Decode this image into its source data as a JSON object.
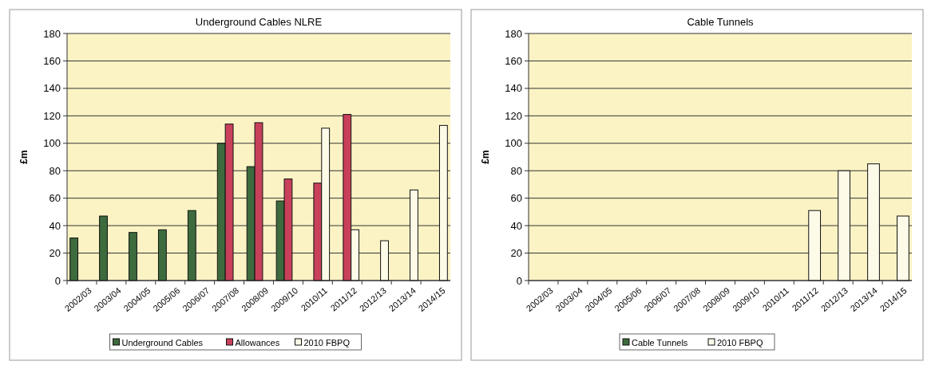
{
  "chart_data": [
    {
      "type": "bar",
      "title": "Underground Cables NLRE",
      "ylabel": "£m",
      "categories": [
        "2002/03",
        "2003/04",
        "2004/05",
        "2005/06",
        "2006/07",
        "2007/08",
        "2008/09",
        "2009/10",
        "2010/11",
        "2011/12",
        "2012/13",
        "2013/14",
        "2014/15"
      ],
      "series": [
        {
          "name": "Underground Cables",
          "color": "#3d6b3d",
          "values": [
            31,
            47,
            35,
            37,
            51,
            100,
            83,
            58,
            null,
            null,
            null,
            null,
            null
          ]
        },
        {
          "name": "Allowances",
          "color": "#c8405a",
          "values": [
            null,
            null,
            null,
            null,
            null,
            114,
            115,
            74,
            71,
            121,
            null,
            null,
            null
          ]
        },
        {
          "name": "2010 FBPQ",
          "color": "#fdfbe8",
          "values": [
            null,
            null,
            null,
            null,
            null,
            null,
            null,
            null,
            111,
            37,
            29,
            66,
            113
          ]
        }
      ],
      "ylim": [
        0,
        180
      ],
      "yticks": [
        0,
        20,
        40,
        60,
        80,
        100,
        120,
        140,
        160,
        180
      ],
      "grid": "y",
      "legend": "bottom"
    },
    {
      "type": "bar",
      "title": "Cable Tunnels",
      "ylabel": "£m",
      "categories": [
        "2002/03",
        "2003/04",
        "2004/05",
        "2005/06",
        "2006/07",
        "2007/08",
        "2008/09",
        "2009/10",
        "2010/11",
        "2011/12",
        "2012/13",
        "2013/14",
        "2014/15"
      ],
      "series": [
        {
          "name": "Cable Tunnels",
          "color": "#3d6b3d",
          "values": [
            null,
            null,
            null,
            null,
            null,
            null,
            null,
            null,
            null,
            null,
            null,
            null,
            null
          ]
        },
        {
          "name": "2010 FBPQ",
          "color": "#fdfbe8",
          "values": [
            null,
            null,
            null,
            null,
            null,
            null,
            null,
            null,
            null,
            51,
            80,
            85,
            47
          ]
        }
      ],
      "ylim": [
        0,
        180
      ],
      "yticks": [
        0,
        20,
        40,
        60,
        80,
        100,
        120,
        140,
        160,
        180
      ],
      "grid": "y",
      "legend": "bottom"
    }
  ]
}
